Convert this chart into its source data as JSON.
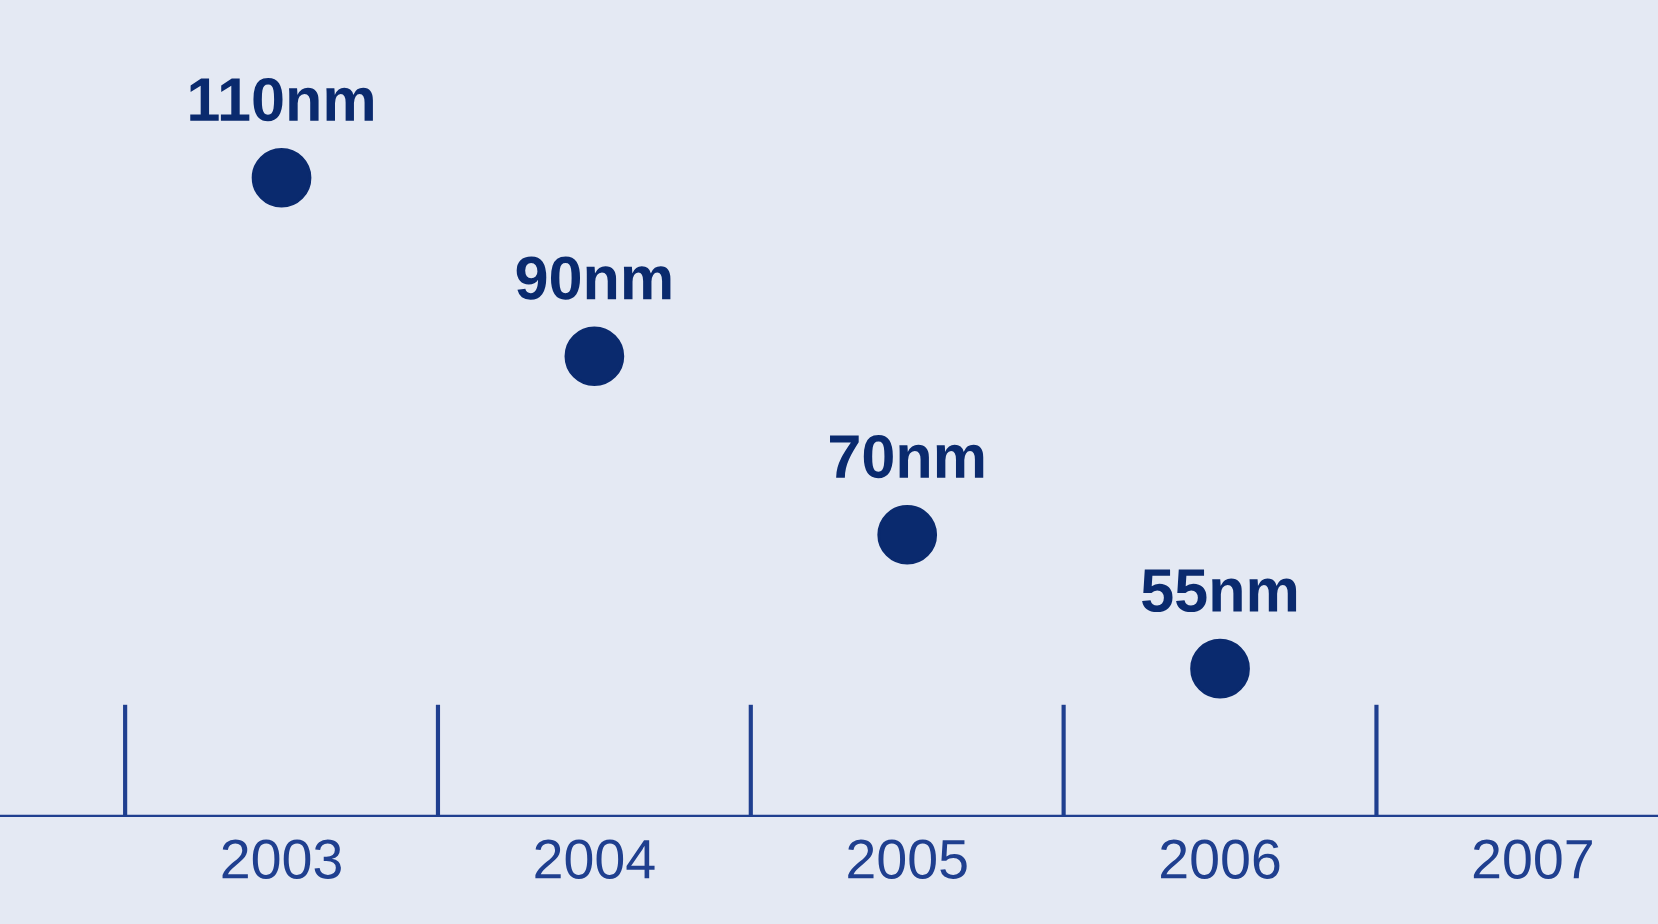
{
  "chart_data": {
    "type": "scatter",
    "categories": [
      "2003",
      "2004",
      "2005",
      "2006",
      "2007"
    ],
    "series": [
      {
        "color": "#0a2a6e",
        "values": [
          110,
          90,
          70,
          55,
          null
        ],
        "value_labels": [
          "110nm",
          "90nm",
          "70nm",
          "55nm",
          null
        ]
      }
    ],
    "marker": "circle",
    "grid": false,
    "legend": false,
    "tick_labels": "x"
  }
}
